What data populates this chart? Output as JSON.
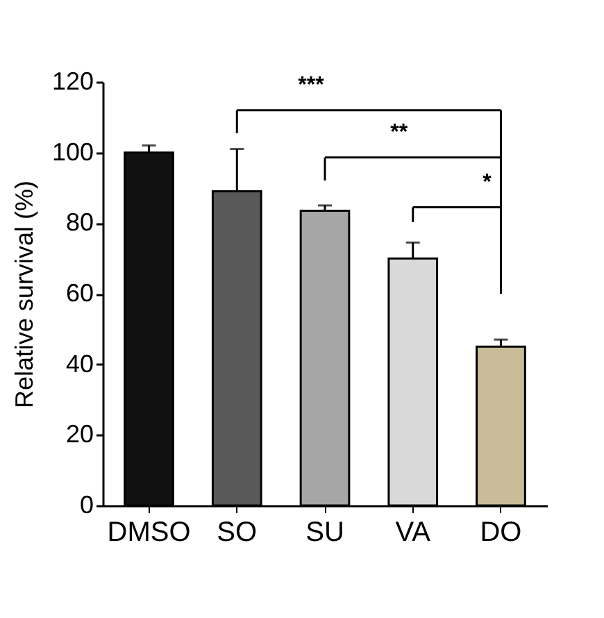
{
  "chart_data": {
    "type": "bar",
    "ylabel": "Relative survival (%)",
    "categories": [
      "DMSO",
      "SO",
      "SU",
      "VA",
      "DO"
    ],
    "values": [
      100,
      89,
      83.5,
      70,
      45
    ],
    "colors": [
      "#111111",
      "#595959",
      "#a6a6a6",
      "#d9d9d9",
      "#c8bd98"
    ],
    "errors": [
      [
        100,
        102
      ],
      [
        89,
        101
      ],
      [
        83.5,
        85
      ],
      [
        70,
        74.5
      ],
      [
        45,
        47
      ]
    ],
    "ylim": [
      0,
      120
    ],
    "yticks": [
      0,
      20,
      40,
      60,
      80,
      100,
      120
    ],
    "grid": false,
    "annotations": [
      "***",
      "**",
      "*"
    ]
  }
}
